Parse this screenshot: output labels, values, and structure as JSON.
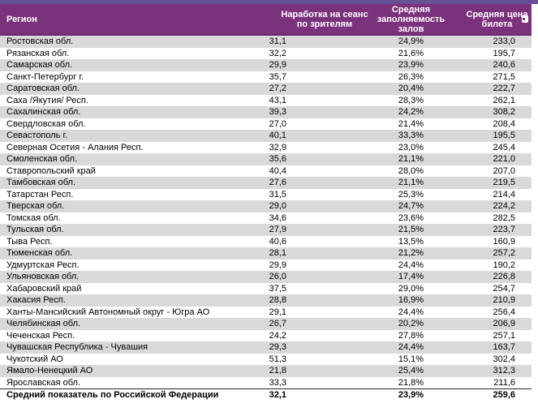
{
  "colors": {
    "top_strip": "#675094",
    "header_bg": "#7b327c",
    "header_text": "#ffffff",
    "alt_row_bg": "#d9d9d9",
    "row_text": "#000000",
    "summary_border": "#262626"
  },
  "table": {
    "columns": [
      {
        "key": "region",
        "label": "Регион"
      },
      {
        "key": "per_session_viewers",
        "label": "Наработка на сеанс по зрителям"
      },
      {
        "key": "avg_occupancy",
        "label": "Средняя заполняемость залов"
      },
      {
        "key": "avg_ticket_price",
        "label": "Средняя цена билета"
      }
    ],
    "rows": [
      [
        "Ростовская обл.",
        "31,1",
        "24,9%",
        "233,0"
      ],
      [
        "Рязанская обл.",
        "32,2",
        "21,6%",
        "195,7"
      ],
      [
        "Самарская обл.",
        "29,9",
        "23,9%",
        "240,6"
      ],
      [
        "Санкт-Петербург г.",
        "35,7",
        "26,3%",
        "271,5"
      ],
      [
        "Саратовская обл.",
        "27,2",
        "20,4%",
        "222,7"
      ],
      [
        "Саха /Якутия/ Респ.",
        "43,1",
        "28,3%",
        "262,1"
      ],
      [
        "Сахалинская обл.",
        "39,3",
        "24,2%",
        "308,2"
      ],
      [
        "Свердловская обл.",
        "27,0",
        "21,4%",
        "208,4"
      ],
      [
        "Севастополь г.",
        "40,1",
        "33,3%",
        "195,5"
      ],
      [
        "Северная Осетия - Алания Респ.",
        "32,9",
        "23,0%",
        "245,4"
      ],
      [
        "Смоленская обл.",
        "35,6",
        "21,1%",
        "221,0"
      ],
      [
        "Ставропольский край",
        "40,4",
        "28,0%",
        "207,0"
      ],
      [
        "Тамбовская обл.",
        "27,6",
        "21,1%",
        "219,5"
      ],
      [
        "Татарстан Респ.",
        "31,5",
        "25,3%",
        "214,4"
      ],
      [
        "Тверская обл.",
        "29,0",
        "24,7%",
        "224,2"
      ],
      [
        "Томская обл.",
        "34,6",
        "23,6%",
        "282,5"
      ],
      [
        "Тульская обл.",
        "27,9",
        "21,5%",
        "223,7"
      ],
      [
        "Тыва Респ.",
        "40,6",
        "13,5%",
        "160,9"
      ],
      [
        "Тюменская обл.",
        "28,1",
        "21,2%",
        "257,2"
      ],
      [
        "Удмуртская Респ.",
        "29,9",
        "24,4%",
        "190,2"
      ],
      [
        "Ульяновская обл.",
        "26,0",
        "17,4%",
        "226,8"
      ],
      [
        "Хабаровский край",
        "37,5",
        "29,0%",
        "254,7"
      ],
      [
        "Хакасия Респ.",
        "28,8",
        "16,9%",
        "210,9"
      ],
      [
        "Ханты-Мансийский Автономный округ - Югра АО",
        "29,1",
        "24,4%",
        "256,4"
      ],
      [
        "Челябинская обл.",
        "26,7",
        "20,2%",
        "206,9"
      ],
      [
        "Чеченская Респ.",
        "24,2",
        "27,8%",
        "257,1"
      ],
      [
        "Чувашская Республика - Чувашия",
        "29,3",
        "24,4%",
        "163,7"
      ],
      [
        "Чукотский АО",
        "51,3",
        "15,1%",
        "302,4"
      ],
      [
        "Ямало-Ненецкий АО",
        "21,8",
        "25,4%",
        "312,3"
      ],
      [
        "Ярославская обл.",
        "33,3",
        "21,8%",
        "211,6"
      ]
    ],
    "summary": [
      "Средний показатель по Российской Федерации",
      "32,1",
      "23,9%",
      "259,6"
    ]
  }
}
